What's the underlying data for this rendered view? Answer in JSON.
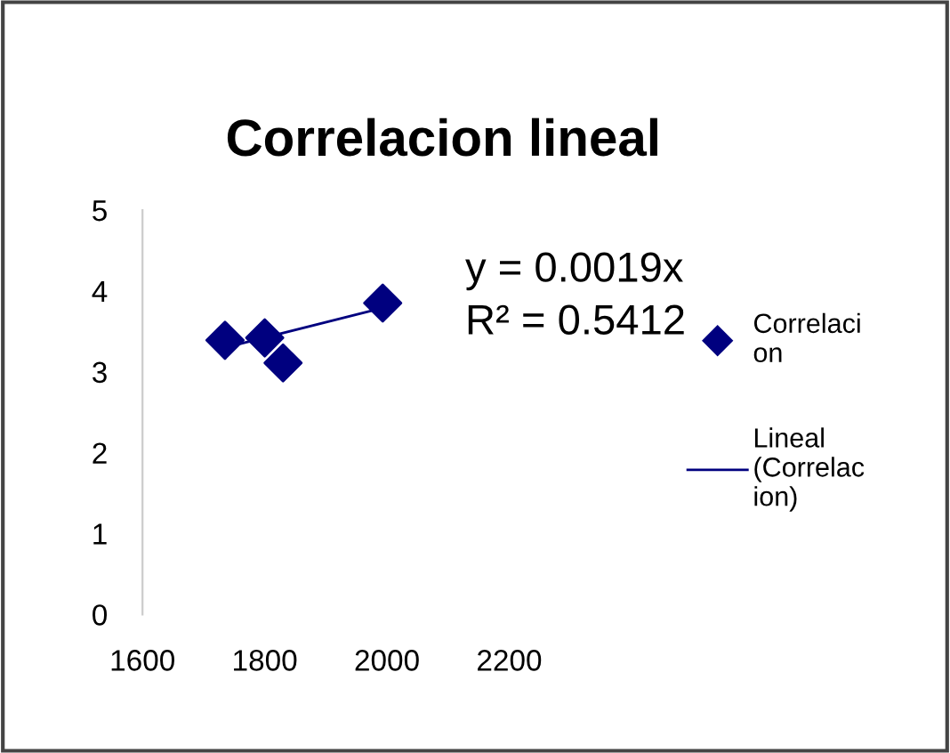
{
  "chart_data": {
    "type": "scatter",
    "title": "Correlacion lineal",
    "xlim": [
      1600,
      2200
    ],
    "xticks": [
      1600,
      1800,
      2000,
      2200
    ],
    "ylim": [
      0,
      5
    ],
    "yticks": [
      0,
      1,
      2,
      3,
      4,
      5
    ],
    "grid": false,
    "legend": "right",
    "series": [
      {
        "name": "Correlacion",
        "color": "#00007f",
        "marker": "diamond",
        "x": [
          1735,
          1800,
          1830,
          1993
        ],
        "values": [
          3.39,
          3.42,
          3.11,
          3.85
        ]
      },
      {
        "name": "Lineal (Correlacion)",
        "type": "line",
        "color": "#00007f",
        "line_style": "solid",
        "marker": "none",
        "x": [
          1735,
          1993
        ],
        "values": [
          3.3,
          3.79
        ]
      }
    ],
    "annotations": [
      "y = 0.0019x",
      "R² = 0.5412"
    ]
  }
}
